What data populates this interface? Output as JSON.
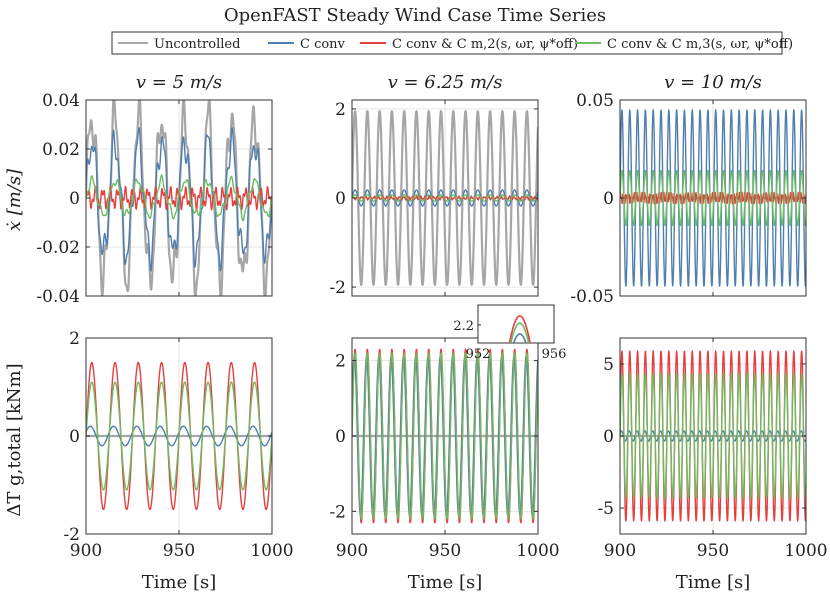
{
  "figure": {
    "title": "OpenFAST Steady Wind Case Time Series",
    "xlabel": "Time [s]",
    "ylabel_top": "ẋ [m/s]",
    "ylabel_bottom": "ΔT g,total [kNm]"
  },
  "legend": [
    {
      "name": "Uncontrolled",
      "color": "#a6a6a6"
    },
    {
      "name": "C conv",
      "color": "#4f7fae"
    },
    {
      "name": "C conv & C m,2(s, ωr, ψ*off)",
      "color": "#e3403f"
    },
    {
      "name": "C conv & C m,3(s, ωr, ψ*off)",
      "color": "#6dbb63"
    }
  ],
  "chart_data": [
    {
      "type": "line",
      "title": "v = 5 m/s",
      "xlim": [
        900,
        1000
      ],
      "ylim": [
        -0.04,
        0.04
      ],
      "xticks": [
        "900",
        "950",
        "1000"
      ],
      "yticks": [
        "-0.04",
        "-0.02",
        "0",
        "0.02",
        "0.04"
      ],
      "period_s": 12.5,
      "series": [
        {
          "name": "Uncontrolled",
          "amplitude": 0.033
        },
        {
          "name": "C conv",
          "amplitude": 0.023
        },
        {
          "name": "C conv & C m,2",
          "amplitude": 0.003
        },
        {
          "name": "C conv & C m,3",
          "amplitude": 0.007
        }
      ]
    },
    {
      "type": "line",
      "title": "v = 6.25 m/s",
      "xlim": [
        900,
        1000
      ],
      "ylim": [
        -2.2,
        2.2
      ],
      "xticks": [
        "900",
        "950",
        "1000"
      ],
      "yticks": [
        "-2",
        "0",
        "2"
      ],
      "period_s": 6.6,
      "series": [
        {
          "name": "Uncontrolled",
          "amplitude": 1.95
        },
        {
          "name": "C conv",
          "amplitude": 0.18
        },
        {
          "name": "C conv & C m,2",
          "amplitude": 0.03
        },
        {
          "name": "C conv & C m,3",
          "amplitude": 0.07
        }
      ]
    },
    {
      "type": "line",
      "title": "v = 10 m/s",
      "xlim": [
        900,
        1000
      ],
      "ylim": [
        -0.05,
        0.05
      ],
      "xticks": [
        "900",
        "950",
        "1000"
      ],
      "yticks": [
        "-0.05",
        "0",
        "0.05"
      ],
      "period_s": 4.2,
      "series": [
        {
          "name": "Uncontrolled",
          "amplitude": 0
        },
        {
          "name": "C conv",
          "amplitude": 0.045
        },
        {
          "name": "C conv & C m,2",
          "amplitude": 0.002
        },
        {
          "name": "C conv & C m,3",
          "amplitude": 0.014
        }
      ]
    },
    {
      "type": "line",
      "title": "",
      "xlim": [
        900,
        1000
      ],
      "ylim": [
        -2,
        2
      ],
      "xticks": [
        "900",
        "950",
        "1000"
      ],
      "yticks": [
        "-2",
        "0",
        "2"
      ],
      "period_s": 12.5,
      "series": [
        {
          "name": "Uncontrolled",
          "amplitude": 0
        },
        {
          "name": "C conv",
          "amplitude": 0.2
        },
        {
          "name": "C conv & C m,2",
          "amplitude": 1.5
        },
        {
          "name": "C conv & C m,3",
          "amplitude": 1.1
        }
      ]
    },
    {
      "type": "line",
      "title": "",
      "xlim": [
        900,
        1000
      ],
      "ylim": [
        -2.6,
        2.6
      ],
      "xticks": [
        "900",
        "950",
        "1000"
      ],
      "yticks": [
        "-2",
        "0",
        "2"
      ],
      "period_s": 6.6,
      "series": [
        {
          "name": "Uncontrolled",
          "amplitude": 0
        },
        {
          "name": "C conv",
          "amplitude": 2.1
        },
        {
          "name": "C conv & C m,2",
          "amplitude": 2.3
        },
        {
          "name": "C conv & C m,3",
          "amplitude": 2.2
        }
      ]
    },
    {
      "type": "line",
      "title": "",
      "xlim": [
        900,
        1000
      ],
      "ylim": [
        -6.8,
        6.8
      ],
      "xticks": [
        "900",
        "950",
        "1000"
      ],
      "yticks": [
        "-5",
        "0",
        "5"
      ],
      "period_s": 4.2,
      "series": [
        {
          "name": "Uncontrolled",
          "amplitude": 0
        },
        {
          "name": "C conv",
          "amplitude": 0.35
        },
        {
          "name": "C conv & C m,2",
          "amplitude": 5.9
        },
        {
          "name": "C conv & C m,3",
          "amplitude": 4.3
        }
      ]
    }
  ],
  "inset": {
    "xlim": [
      952,
      956
    ],
    "ylim": [
      2.0,
      2.42
    ],
    "xticks": [
      "952",
      "956"
    ],
    "yticks": [
      "2.2"
    ],
    "peaks": [
      {
        "name": "C conv",
        "value": 2.1
      },
      {
        "name": "C conv & C m,2",
        "value": 2.3
      },
      {
        "name": "C conv & C m,3",
        "value": 2.22
      }
    ]
  }
}
